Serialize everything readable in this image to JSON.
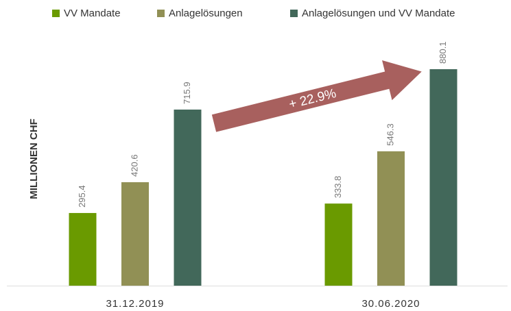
{
  "chart_data": {
    "type": "bar",
    "y_label": "MILLIONEN CHF",
    "annotation": "+ 22.9%",
    "categories": [
      "31.12.2019",
      "30.06.2020"
    ],
    "series": [
      {
        "name": "VV Mandate",
        "color": "#6a9a00",
        "values": [
          295.4,
          333.8
        ]
      },
      {
        "name": "Anlagelösungen",
        "color": "#919055",
        "values": [
          420.6,
          546.3
        ]
      },
      {
        "name": "Anlagelösungen und VV Mandate",
        "color": "#42685a",
        "values": [
          715.9,
          880.1
        ]
      }
    ]
  }
}
